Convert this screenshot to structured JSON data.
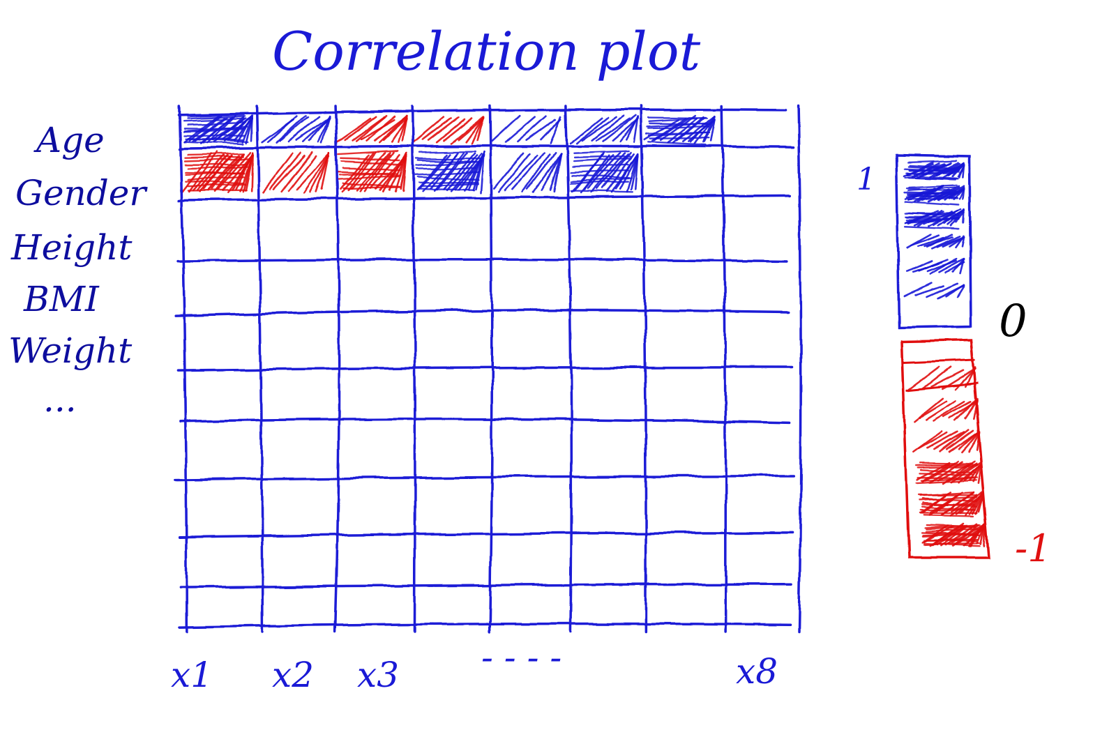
{
  "title": "Correlation plot",
  "row_labels": [
    "Age",
    "Gender",
    "Height",
    "BMI",
    "Weight",
    "..."
  ],
  "column_labels": [
    "x1",
    "x2",
    "x3",
    "- - - -",
    "x8"
  ],
  "colors": {
    "ink_blue": "#1a1ad6",
    "positive": "#1a1ad6",
    "negative": "#e01010",
    "zero_mark": "#000000"
  },
  "matrix": {
    "rows": 10,
    "cols": 8,
    "filled_cells": [
      {
        "row": 0,
        "col": 0,
        "sign": "positive",
        "intensity": 1.0
      },
      {
        "row": 0,
        "col": 1,
        "sign": "positive",
        "intensity": 0.4
      },
      {
        "row": 0,
        "col": 2,
        "sign": "negative",
        "intensity": 0.6
      },
      {
        "row": 0,
        "col": 3,
        "sign": "negative",
        "intensity": 0.4
      },
      {
        "row": 0,
        "col": 4,
        "sign": "positive",
        "intensity": 0.15
      },
      {
        "row": 0,
        "col": 5,
        "sign": "positive",
        "intensity": 0.45
      },
      {
        "row": 0,
        "col": 6,
        "sign": "positive",
        "intensity": 0.7
      },
      {
        "row": 1,
        "col": 0,
        "sign": "negative",
        "intensity": 1.0
      },
      {
        "row": 1,
        "col": 1,
        "sign": "negative",
        "intensity": 0.45
      },
      {
        "row": 1,
        "col": 2,
        "sign": "negative",
        "intensity": 0.75
      },
      {
        "row": 1,
        "col": 3,
        "sign": "positive",
        "intensity": 0.85
      },
      {
        "row": 1,
        "col": 4,
        "sign": "positive",
        "intensity": 0.45
      },
      {
        "row": 1,
        "col": 5,
        "sign": "positive",
        "intensity": 0.8
      }
    ]
  },
  "color_scale": {
    "max_label": "1",
    "zero_label": "0",
    "min_label": "-1",
    "max_value": 1,
    "zero_value": 0,
    "min_value": -1
  }
}
